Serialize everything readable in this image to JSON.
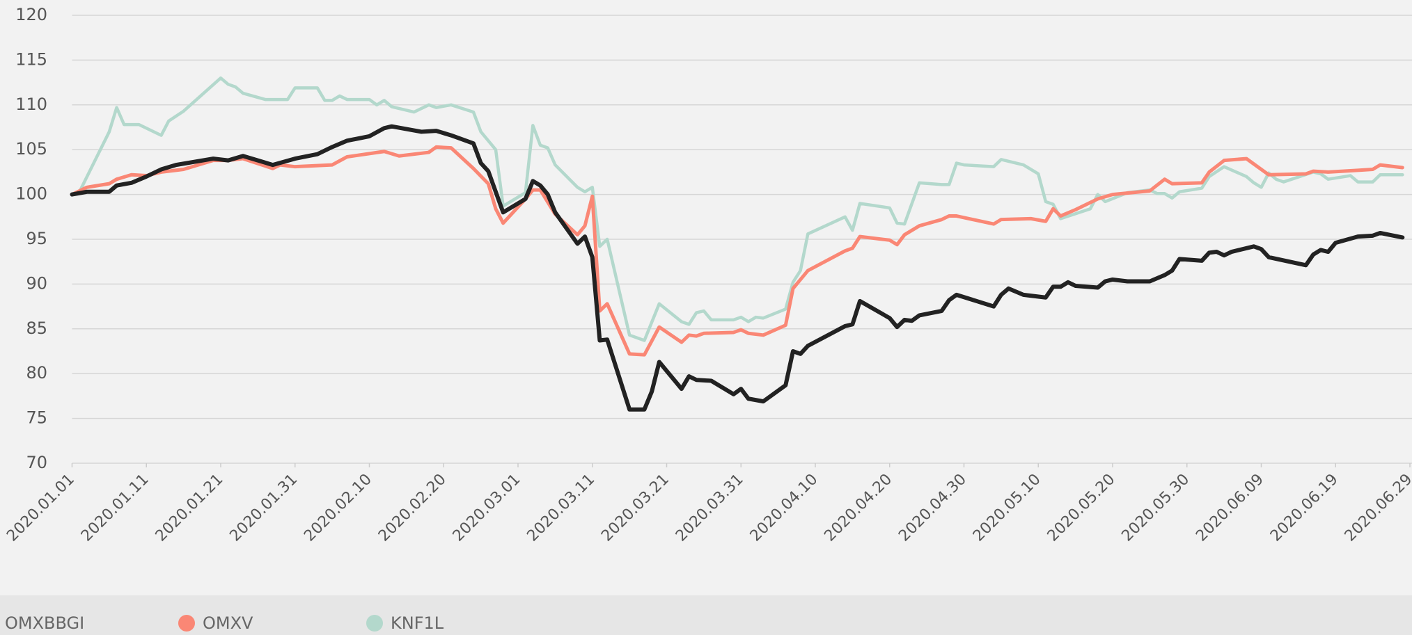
{
  "chart_data": {
    "type": "line",
    "xlim": [
      "2020.01.01",
      "2020.06.29"
    ],
    "xticks": [
      "2020.01.01",
      "2020.01.11",
      "2020.01.21",
      "2020.01.31",
      "2020.02.10",
      "2020.02.20",
      "2020.03.01",
      "2020.03.11",
      "2020.03.21",
      "2020.03.31",
      "2020.04.10",
      "2020.04.20",
      "2020.04.30",
      "2020.05.10",
      "2020.05.20",
      "2020.05.30",
      "2020.06.09",
      "2020.06.19",
      "2020.06.29"
    ],
    "ylim": [
      70,
      120
    ],
    "yticks": [
      70,
      75,
      80,
      85,
      90,
      95,
      100,
      105,
      110,
      115,
      120
    ],
    "grid": true,
    "legend": "bottom",
    "series": [
      {
        "name": "OMXBBGI",
        "color": "#222222",
        "x": [
          "2020.01.01",
          "2020.01.03",
          "2020.01.06",
          "2020.01.07",
          "2020.01.09",
          "2020.01.11",
          "2020.01.13",
          "2020.01.15",
          "2020.01.20",
          "2020.01.22",
          "2020.01.24",
          "2020.01.28",
          "2020.01.31",
          "2020.02.03",
          "2020.02.05",
          "2020.02.07",
          "2020.02.10",
          "2020.02.12",
          "2020.02.13",
          "2020.02.17",
          "2020.02.19",
          "2020.02.21",
          "2020.02.24",
          "2020.02.25",
          "2020.02.26",
          "2020.02.28",
          "2020.03.02",
          "2020.03.03",
          "2020.03.04",
          "2020.03.05",
          "2020.03.06",
          "2020.03.09",
          "2020.03.10",
          "2020.03.11",
          "2020.03.12",
          "2020.03.13",
          "2020.03.16",
          "2020.03.18",
          "2020.03.19",
          "2020.03.20",
          "2020.03.23",
          "2020.03.24",
          "2020.03.25",
          "2020.03.27",
          "2020.03.30",
          "2020.03.31",
          "2020.04.01",
          "2020.04.03",
          "2020.04.06",
          "2020.04.07",
          "2020.04.08",
          "2020.04.09",
          "2020.04.14",
          "2020.04.15",
          "2020.04.16",
          "2020.04.20",
          "2020.04.21",
          "2020.04.22",
          "2020.04.23",
          "2020.04.24",
          "2020.04.27",
          "2020.04.28",
          "2020.04.29",
          "2020.05.04",
          "2020.05.05",
          "2020.05.06",
          "2020.05.08",
          "2020.05.11",
          "2020.05.12",
          "2020.05.13",
          "2020.05.14",
          "2020.05.15",
          "2020.05.18",
          "2020.05.19",
          "2020.05.20",
          "2020.05.22",
          "2020.05.25",
          "2020.05.27",
          "2020.05.28",
          "2020.05.29",
          "2020.06.01",
          "2020.06.02",
          "2020.06.03",
          "2020.06.04",
          "2020.06.05",
          "2020.06.08",
          "2020.06.09",
          "2020.06.10",
          "2020.06.15",
          "2020.06.16",
          "2020.06.17",
          "2020.06.18",
          "2020.06.19",
          "2020.06.22",
          "2020.06.24",
          "2020.06.25",
          "2020.06.28"
        ],
        "values": [
          100,
          100.3,
          100.3,
          101,
          101.3,
          102,
          102.8,
          103.3,
          104,
          103.8,
          104.3,
          103.3,
          104,
          104.5,
          105.3,
          106,
          106.5,
          107.4,
          107.6,
          107,
          107.1,
          106.6,
          105.7,
          103.5,
          102.6,
          98,
          99.5,
          101.5,
          101,
          100,
          98,
          94.5,
          95.3,
          93,
          83.7,
          83.8,
          76,
          76,
          78,
          81.3,
          78.3,
          79.7,
          79.3,
          79.2,
          77.7,
          78.3,
          77.2,
          76.9,
          78.7,
          82.5,
          82.2,
          83.1,
          85.3,
          85.5,
          88.1,
          86.2,
          85.2,
          86,
          85.9,
          86.5,
          87,
          88.2,
          88.8,
          87.5,
          88.8,
          89.5,
          88.8,
          88.5,
          89.7,
          89.7,
          90.2,
          89.8,
          89.6,
          90.3,
          90.5,
          90.3,
          90.3,
          91,
          91.5,
          92.8,
          92.6,
          93.5,
          93.6,
          93.2,
          93.6,
          94.2,
          93.9,
          93,
          92.1,
          93.3,
          93.8,
          93.6,
          94.6,
          95.3,
          95.4,
          95.7,
          95.2
        ]
      },
      {
        "name": "OMXV",
        "color": "#fa8775",
        "x": [
          "2020.01.01",
          "2020.01.03",
          "2020.01.06",
          "2020.01.07",
          "2020.01.09",
          "2020.01.11",
          "2020.01.13",
          "2020.01.16",
          "2020.01.20",
          "2020.01.22",
          "2020.01.24",
          "2020.01.28",
          "2020.01.29",
          "2020.01.31",
          "2020.02.05",
          "2020.02.07",
          "2020.02.12",
          "2020.02.14",
          "2020.02.18",
          "2020.02.19",
          "2020.02.21",
          "2020.02.24",
          "2020.02.26",
          "2020.02.27",
          "2020.02.28",
          "2020.03.02",
          "2020.03.03",
          "2020.03.04",
          "2020.03.06",
          "2020.03.09",
          "2020.03.10",
          "2020.03.11",
          "2020.03.12",
          "2020.03.13",
          "2020.03.16",
          "2020.03.18",
          "2020.03.20",
          "2020.03.23",
          "2020.03.24",
          "2020.03.25",
          "2020.03.26",
          "2020.03.30",
          "2020.03.31",
          "2020.04.01",
          "2020.04.03",
          "2020.04.06",
          "2020.04.07",
          "2020.04.09",
          "2020.04.14",
          "2020.04.15",
          "2020.04.16",
          "2020.04.20",
          "2020.04.21",
          "2020.04.22",
          "2020.04.24",
          "2020.04.27",
          "2020.04.28",
          "2020.04.29",
          "2020.05.04",
          "2020.05.05",
          "2020.05.09",
          "2020.05.11",
          "2020.05.12",
          "2020.05.13",
          "2020.05.15",
          "2020.05.18",
          "2020.05.20",
          "2020.05.25",
          "2020.05.27",
          "2020.05.28",
          "2020.06.01",
          "2020.06.02",
          "2020.06.04",
          "2020.06.07",
          "2020.06.08",
          "2020.06.10",
          "2020.06.15",
          "2020.06.16",
          "2020.06.18",
          "2020.06.22",
          "2020.06.24",
          "2020.06.25",
          "2020.06.28"
        ],
        "values": [
          100,
          100.8,
          101.2,
          101.7,
          102.2,
          102.1,
          102.5,
          102.8,
          103.8,
          103.8,
          104,
          102.9,
          103.3,
          103.1,
          103.3,
          104.2,
          104.8,
          104.3,
          104.7,
          105.3,
          105.2,
          102.9,
          101.2,
          98.4,
          96.8,
          99.5,
          100.5,
          100.5,
          97.8,
          95.5,
          96.5,
          99.8,
          87,
          87.8,
          82.2,
          82.1,
          85.2,
          83.5,
          84.3,
          84.2,
          84.5,
          84.6,
          84.9,
          84.5,
          84.3,
          85.4,
          89.5,
          91.5,
          93.7,
          94,
          95.3,
          94.9,
          94.4,
          95.5,
          96.5,
          97.2,
          97.6,
          97.6,
          96.7,
          97.2,
          97.3,
          97,
          98.4,
          97.6,
          98.3,
          99.5,
          100,
          100.4,
          101.7,
          101.2,
          101.3,
          102.5,
          103.8,
          104,
          103.4,
          102.2,
          102.3,
          102.6,
          102.5,
          102.7,
          102.8,
          103.3,
          103
        ]
      },
      {
        "name": "KNF1L",
        "color": "#b3d8cc",
        "x": [
          "2020.01.01",
          "2020.01.02",
          "2020.01.06",
          "2020.01.07",
          "2020.01.08",
          "2020.01.10",
          "2020.01.13",
          "2020.01.14",
          "2020.01.16",
          "2020.01.21",
          "2020.01.22",
          "2020.01.23",
          "2020.01.24",
          "2020.01.27",
          "2020.01.30",
          "2020.01.31",
          "2020.02.03",
          "2020.02.04",
          "2020.02.05",
          "2020.02.06",
          "2020.02.07",
          "2020.02.10",
          "2020.02.11",
          "2020.02.12",
          "2020.02.13",
          "2020.02.16",
          "2020.02.18",
          "2020.02.19",
          "2020.02.21",
          "2020.02.24",
          "2020.02.25",
          "2020.02.27",
          "2020.02.28",
          "2020.03.02",
          "2020.03.03",
          "2020.03.04",
          "2020.03.05",
          "2020.03.06",
          "2020.03.09",
          "2020.03.10",
          "2020.03.11",
          "2020.03.12",
          "2020.03.13",
          "2020.03.16",
          "2020.03.18",
          "2020.03.20",
          "2020.03.23",
          "2020.03.24",
          "2020.03.25",
          "2020.03.26",
          "2020.03.27",
          "2020.03.30",
          "2020.03.31",
          "2020.04.01",
          "2020.04.02",
          "2020.04.03",
          "2020.04.06",
          "2020.04.07",
          "2020.04.08",
          "2020.04.09",
          "2020.04.14",
          "2020.04.15",
          "2020.04.16",
          "2020.04.20",
          "2020.04.21",
          "2020.04.22",
          "2020.04.24",
          "2020.04.27",
          "2020.04.28",
          "2020.04.29",
          "2020.04.30",
          "2020.05.04",
          "2020.05.05",
          "2020.05.08",
          "2020.05.10",
          "2020.05.11",
          "2020.05.12",
          "2020.05.13",
          "2020.05.17",
          "2020.05.18",
          "2020.05.19",
          "2020.05.22",
          "2020.05.25",
          "2020.05.26",
          "2020.05.27",
          "2020.05.28",
          "2020.05.29",
          "2020.06.01",
          "2020.06.02",
          "2020.06.04",
          "2020.06.07",
          "2020.06.08",
          "2020.06.09",
          "2020.06.10",
          "2020.06.11",
          "2020.06.12",
          "2020.06.16",
          "2020.06.17",
          "2020.06.18",
          "2020.06.21",
          "2020.06.22",
          "2020.06.24",
          "2020.06.25",
          "2020.06.28"
        ],
        "values": [
          100,
          100.3,
          107,
          109.7,
          107.8,
          107.8,
          106.6,
          108.2,
          109.3,
          113,
          112.3,
          112,
          111.3,
          110.6,
          110.6,
          111.9,
          111.9,
          110.5,
          110.5,
          111,
          110.6,
          110.6,
          110,
          110.5,
          109.8,
          109.2,
          110,
          109.7,
          110,
          109.2,
          107,
          105,
          98.7,
          100.2,
          107.7,
          105.5,
          105.2,
          103.3,
          100.8,
          100.3,
          100.8,
          94.2,
          95,
          84.3,
          83.7,
          87.8,
          85.8,
          85.5,
          86.8,
          87,
          86,
          86,
          86.3,
          85.8,
          86.3,
          86.2,
          87.2,
          90.2,
          91.5,
          95.6,
          97.5,
          96,
          99,
          98.5,
          96.8,
          96.7,
          101.3,
          101.1,
          101.1,
          103.5,
          103.3,
          103.1,
          103.9,
          103.3,
          102.3,
          99.2,
          98.9,
          97.3,
          98.4,
          100,
          99.2,
          100.2,
          100.5,
          100.1,
          100.1,
          99.6,
          100.3,
          100.7,
          102,
          103.1,
          102,
          101.3,
          100.8,
          102.4,
          101.7,
          101.4,
          102.5,
          102.3,
          101.7,
          102.1,
          101.4,
          101.4,
          102.2,
          102.2
        ]
      }
    ]
  }
}
